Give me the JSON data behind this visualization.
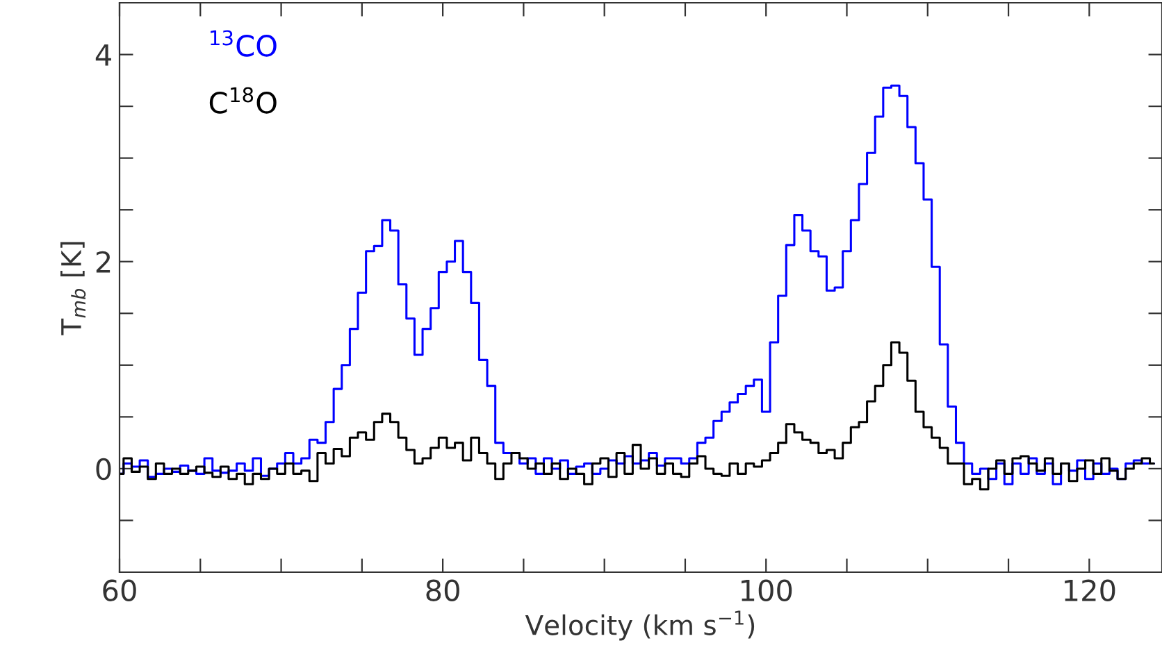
{
  "chart_data": {
    "type": "step",
    "xlabel": "Velocity (km s$^{−1}$)",
    "ylabel": "T$_{mb}$ [K]",
    "x": [
      60,
      60.5,
      61,
      61.5,
      62,
      62.5,
      63,
      63.5,
      64,
      64.5,
      65,
      65.5,
      66,
      66.5,
      67,
      67.5,
      68,
      68.5,
      69,
      69.5,
      70,
      70.5,
      71,
      71.5,
      72,
      72.5,
      73,
      73.5,
      74,
      74.5,
      75,
      75.5,
      76,
      76.5,
      77,
      77.5,
      78,
      78.5,
      79,
      79.5,
      80,
      80.5,
      81,
      81.5,
      82,
      82.5,
      83,
      83.5,
      84,
      84.5,
      85,
      85.5,
      86,
      86.5,
      87,
      87.5,
      88,
      88.5,
      89,
      89.5,
      90,
      90.5,
      91,
      91.5,
      92,
      92.5,
      93,
      93.5,
      94,
      94.5,
      95,
      95.5,
      96,
      96.5,
      97,
      97.5,
      98,
      98.5,
      99,
      99.5,
      100,
      100.5,
      101,
      101.5,
      102,
      102.5,
      103,
      103.5,
      104,
      104.5,
      105,
      105.5,
      106,
      106.5,
      107,
      107.5,
      108,
      108.5,
      109,
      109.5,
      110,
      110.5,
      111,
      111.5,
      112,
      112.5,
      113,
      113.5,
      114,
      114.5,
      115,
      115.5,
      116,
      116.5,
      117,
      117.5,
      118,
      118.5,
      119,
      119.5,
      120,
      120.5,
      121,
      121.5,
      122,
      122.5,
      123,
      123.5,
      124
    ],
    "series": [
      {
        "name": "$^{13}$CO",
        "color": "#0000ff",
        "values": [
          -0.05,
          0.05,
          0.02,
          0.08,
          -0.08,
          -0.05,
          0.0,
          -0.03,
          0.03,
          -0.02,
          -0.05,
          0.1,
          -0.02,
          -0.04,
          -0.02,
          0.05,
          -0.02,
          0.1,
          -0.07,
          0.0,
          0.05,
          0.15,
          0.05,
          0.1,
          0.28,
          0.25,
          0.45,
          0.77,
          1.0,
          1.35,
          1.7,
          2.1,
          2.15,
          2.4,
          2.3,
          1.78,
          1.45,
          1.1,
          1.35,
          1.55,
          1.9,
          2.0,
          2.2,
          1.9,
          1.6,
          1.05,
          0.8,
          0.25,
          0.15,
          0.15,
          0.05,
          0.1,
          -0.05,
          0.1,
          0.0,
          0.08,
          -0.05,
          0.02,
          0.05,
          -0.05,
          0.0,
          0.08,
          0.05,
          0.12,
          0.05,
          0.08,
          0.15,
          0.03,
          0.1,
          0.1,
          0.05,
          0.1,
          0.25,
          0.3,
          0.46,
          0.55,
          0.64,
          0.72,
          0.8,
          0.86,
          0.55,
          1.22,
          1.67,
          2.16,
          2.45,
          2.3,
          2.1,
          2.05,
          1.72,
          1.75,
          2.1,
          2.4,
          2.75,
          3.05,
          3.4,
          3.68,
          3.7,
          3.6,
          3.3,
          2.95,
          2.6,
          1.95,
          1.2,
          0.6,
          0.25,
          0.05,
          -0.05,
          0.0,
          -0.1,
          0.05,
          -0.15,
          0.05,
          -0.05,
          0.1,
          -0.05,
          0.05,
          -0.15,
          0.05,
          -0.02,
          0.08,
          -0.1,
          0.05,
          -0.05,
          0.0,
          -0.1,
          0.05,
          0.08,
          0.05,
          0.05
        ]
      },
      {
        "name": "C$^{18}$O",
        "color": "#000000",
        "values": [
          -0.05,
          0.1,
          -0.03,
          0.02,
          -0.1,
          0.05,
          -0.05,
          0.0,
          -0.05,
          -0.02,
          0.02,
          -0.04,
          -0.08,
          0.02,
          -0.1,
          -0.05,
          -0.15,
          -0.05,
          -0.1,
          0.0,
          -0.05,
          0.05,
          -0.05,
          -0.02,
          -0.12,
          0.15,
          0.05,
          0.19,
          0.12,
          0.3,
          0.35,
          0.28,
          0.45,
          0.53,
          0.45,
          0.3,
          0.18,
          0.05,
          0.1,
          0.2,
          0.3,
          0.2,
          0.25,
          0.08,
          0.3,
          0.15,
          0.05,
          -0.1,
          0.05,
          0.15,
          0.1,
          0.0,
          0.05,
          -0.05,
          0.05,
          -0.1,
          0.0,
          -0.05,
          -0.15,
          0.05,
          0.1,
          -0.08,
          0.15,
          -0.05,
          0.23,
          0.0,
          0.1,
          -0.05,
          0.05,
          -0.05,
          -0.08,
          0.05,
          0.12,
          0.0,
          -0.05,
          -0.07,
          0.05,
          -0.05,
          0.05,
          0.02,
          0.08,
          0.15,
          0.25,
          0.43,
          0.35,
          0.28,
          0.25,
          0.15,
          0.18,
          0.1,
          0.25,
          0.4,
          0.45,
          0.65,
          0.8,
          1.0,
          1.22,
          1.12,
          0.85,
          0.55,
          0.4,
          0.3,
          0.2,
          0.05,
          0.05,
          -0.15,
          -0.1,
          -0.2,
          0.0,
          0.08,
          -0.05,
          0.1,
          0.12,
          0.05,
          -0.02,
          0.1,
          -0.05,
          0.05,
          -0.12,
          0.0,
          0.08,
          -0.05,
          0.1,
          -0.02,
          -0.1,
          0.0,
          0.05,
          0.1,
          0.05
        ]
      }
    ],
    "xlim": [
      60,
      124.5
    ],
    "ylim": [
      -1,
      4.5
    ],
    "xticks": [
      60,
      {
        "value": 65,
        "label": null
      },
      {
        "value": 70,
        "label": null
      },
      {
        "value": 75,
        "label": null
      },
      80,
      {
        "value": 85,
        "label": null
      },
      {
        "value": 90,
        "label": null
      },
      {
        "value": 95,
        "label": null
      },
      100,
      {
        "value": 105,
        "label": null
      },
      {
        "value": 110,
        "label": null
      },
      {
        "value": 115,
        "label": null
      },
      120
    ],
    "yticks": [
      {
        "value": -0.5,
        "label": null
      },
      0,
      {
        "value": 0.5,
        "label": null
      },
      {
        "value": 1,
        "label": null
      },
      {
        "value": 1.5,
        "label": null
      },
      2,
      {
        "value": 2.5,
        "label": null
      },
      {
        "value": 3,
        "label": null
      },
      {
        "value": 3.5,
        "label": null
      },
      4
    ],
    "legend": "top left",
    "grid": false,
    "marker": "none",
    "line_style": "solid"
  }
}
